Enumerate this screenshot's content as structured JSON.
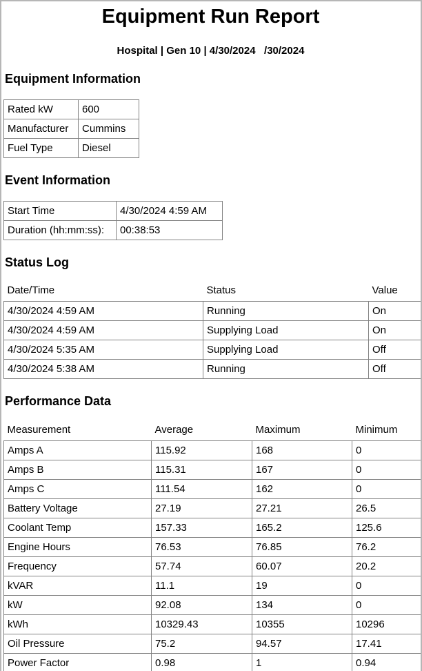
{
  "report": {
    "title": "Equipment Run Report",
    "subtitle": "Hospital | Gen 10 | 4/30/2024   /30/2024"
  },
  "equipment_info": {
    "heading": "Equipment Information",
    "rows": [
      [
        "Rated kW",
        "600"
      ],
      [
        "Manufacturer",
        "Cummins"
      ],
      [
        "Fuel Type",
        "Diesel"
      ]
    ]
  },
  "event_info": {
    "heading": "Event Information",
    "rows": [
      [
        "Start Time",
        "4/30/2024 4:59 AM"
      ],
      [
        "Duration (hh:mm:ss):",
        "00:38:53"
      ]
    ]
  },
  "status_log": {
    "heading": "Status Log",
    "columns": [
      "Date/Time",
      "Status",
      "Value"
    ],
    "rows": [
      [
        "4/30/2024 4:59 AM",
        "Running",
        "On"
      ],
      [
        "4/30/2024 4:59 AM",
        "Supplying Load",
        "On"
      ],
      [
        "4/30/2024 5:35 AM",
        "Supplying Load",
        "Off"
      ],
      [
        "4/30/2024 5:38 AM",
        "Running",
        "Off"
      ]
    ]
  },
  "performance_data": {
    "heading": "Performance Data",
    "columns": [
      "Measurement",
      "Average",
      "Maximum",
      "Minimum"
    ],
    "rows": [
      [
        "Amps A",
        "115.92",
        "168",
        "0"
      ],
      [
        "Amps B",
        "115.31",
        "167",
        "0"
      ],
      [
        "Amps C",
        "111.54",
        "162",
        "0"
      ],
      [
        "Battery Voltage",
        "27.19",
        "27.21",
        "26.5"
      ],
      [
        "Coolant Temp",
        "157.33",
        "165.2",
        "125.6"
      ],
      [
        "Engine Hours",
        "76.53",
        "76.85",
        "76.2"
      ],
      [
        "Frequency",
        "57.74",
        "60.07",
        "20.2"
      ],
      [
        "kVAR",
        "11.1",
        "19",
        "0"
      ],
      [
        "kW",
        "92.08",
        "134",
        "0"
      ],
      [
        "kWh",
        "10329.43",
        "10355",
        "10296"
      ],
      [
        "Oil Pressure",
        "75.2",
        "94.57",
        "17.41"
      ],
      [
        "Power Factor",
        "0.98",
        "1",
        "0.94"
      ]
    ]
  },
  "colors": {
    "text": "#000000",
    "background": "#ffffff",
    "table_border": "#828282",
    "page_border": "#b6b6b6"
  }
}
